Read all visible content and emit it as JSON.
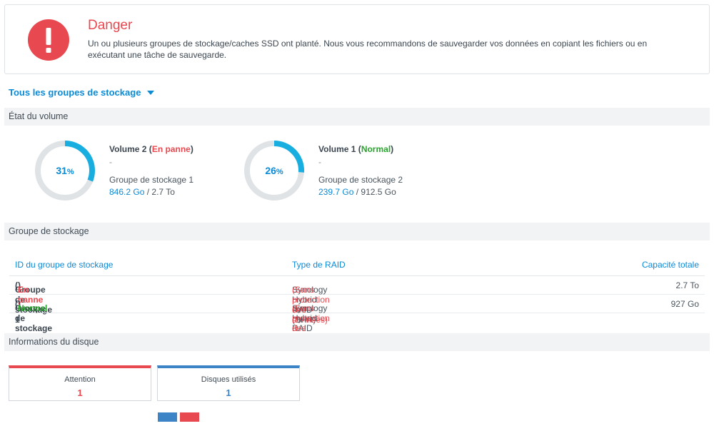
{
  "alert": {
    "title": "Danger",
    "message": "Un ou plusieurs groupes de stockage/caches SSD ont planté. Nous vous recommandons de sauvegarder vos données en copiant les fichiers ou en exécutant une tâche de sauvegarde.",
    "icon": "exclamation-icon",
    "color": "#e8484f"
  },
  "pool_selector": {
    "label": "Tous les groupes de stockage",
    "icon": "chevron-down-icon"
  },
  "volume_section": {
    "title": "État du volume",
    "volumes": [
      {
        "name": "Volume 2",
        "status": "En panne",
        "status_kind": "bad",
        "percent": 31,
        "percent_sym": "%",
        "description": "-",
        "pool": "Groupe de stockage 1",
        "used": "846.2 Go",
        "total": "2.7 To"
      },
      {
        "name": "Volume 1",
        "status": "Normal",
        "status_kind": "good",
        "percent": 26,
        "percent_sym": "%",
        "description": "-",
        "pool": "Groupe de stockage 2",
        "used": "239.7 Go",
        "total": "912.5 Go"
      }
    ]
  },
  "pool_section": {
    "title": "Groupe de stockage",
    "columns": [
      "ID du groupe de stockage",
      "Type de RAID",
      "Capacité totale"
    ],
    "rows": [
      {
        "id": "Groupe de stockage 1",
        "status": "En panne",
        "status_kind": "bad",
        "raid": "Synology Hybrid RAID (SHR)",
        "raid_note": "(Sans protection des données)",
        "capacity": "2.7 To"
      },
      {
        "id": "Groupe de stockage 2",
        "status": "Normal",
        "status_kind": "good",
        "raid": "Synology Hybrid RAID (SHR)",
        "raid_note": "(Sans protection des données)",
        "capacity": "927 Go"
      }
    ]
  },
  "disk_section": {
    "title": "Informations du disque",
    "cards": [
      {
        "label": "Attention",
        "value": "1",
        "color": "#e8484f"
      },
      {
        "label": "Disques utilisés",
        "value": "1",
        "color": "#3c84c6"
      }
    ],
    "legend_colors": [
      "#3c84c6",
      "#e8484f"
    ]
  },
  "colors": {
    "accent": "#0b8ad6",
    "ring_track": "#dfe3e6",
    "ring_fill": "#18aee0",
    "danger": "#e8484f",
    "success": "#2aa52e"
  }
}
